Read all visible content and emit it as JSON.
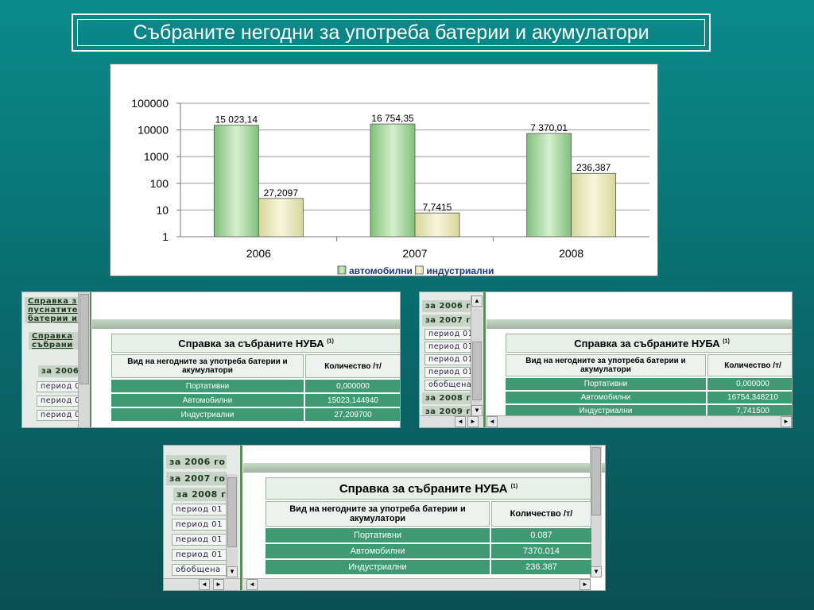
{
  "title": "Събраните негодни за употреба батерии и акумулатори",
  "chart_data": {
    "type": "bar",
    "categories": [
      "2006",
      "2007",
      "2008"
    ],
    "series": [
      {
        "name": "автомобилни",
        "values": [
          15023.14,
          16754.35,
          7370.01
        ],
        "labels": [
          "15 023,14",
          "16 754,35",
          "7 370,01"
        ],
        "color": "#a9d9a0"
      },
      {
        "name": "индустриални",
        "values": [
          27.2097,
          7.7415,
          236.387
        ],
        "labels": [
          "27,2097",
          "7,7415",
          "236,387"
        ],
        "color": "#ecebb8"
      }
    ],
    "yscale": "log",
    "ylim": [
      1,
      100000
    ],
    "yticks": [
      "1",
      "10",
      "100",
      "1000",
      "10000",
      "100000"
    ],
    "grid": true,
    "legend": "bottom"
  },
  "panels": [
    {
      "nav": [
        {
          "text": "Справка з",
          "kind": "head"
        },
        {
          "text": "пуснатите",
          "kind": "head"
        },
        {
          "text": "батерии и а",
          "kind": "head"
        },
        {
          "text": "Справка",
          "kind": "link"
        },
        {
          "text": "събрани",
          "kind": "link"
        },
        {
          "text": "за 2006",
          "kind": "year"
        },
        {
          "text": "период 0",
          "kind": "sub"
        },
        {
          "text": "период 0",
          "kind": "sub"
        },
        {
          "text": "период 0",
          "kind": "sub"
        }
      ],
      "report": {
        "title": "Справка за събраните НУБА",
        "note": "(1)",
        "col1": "Вид на негодните за употреба батерии и акумулатори",
        "col2": "Количество /т/",
        "rows": [
          {
            "type": "Портативни",
            "qty": "0,000000"
          },
          {
            "type": "Автомобилни",
            "qty": "15023,144940"
          },
          {
            "type": "Индустриални",
            "qty": "27,209700"
          }
        ]
      }
    },
    {
      "nav": [
        {
          "text": "за 2006 го",
          "kind": "year"
        },
        {
          "text": "за 2007 го",
          "kind": "year"
        },
        {
          "text": "период 01",
          "kind": "sub"
        },
        {
          "text": "период 01",
          "kind": "sub"
        },
        {
          "text": "период 01",
          "kind": "sub"
        },
        {
          "text": "период 01",
          "kind": "sub"
        },
        {
          "text": "обобщена",
          "kind": "sub"
        },
        {
          "text": "за 2008 го",
          "kind": "year"
        },
        {
          "text": "за 2009 го",
          "kind": "year"
        }
      ],
      "report": {
        "title": "Справка за събраните НУБА",
        "note": "(1)",
        "col1": "Вид на негодните за употреба батерии и акумулатори",
        "col2": "Количество /т/",
        "rows": [
          {
            "type": "Портативни",
            "qty": "0,000000"
          },
          {
            "type": "Автомобилни",
            "qty": "16754,348210"
          },
          {
            "type": "Индустриални",
            "qty": "7,741500"
          }
        ]
      }
    },
    {
      "nav": [
        {
          "text": "за 2006 го",
          "kind": "year"
        },
        {
          "text": "за 2007 го",
          "kind": "year"
        },
        {
          "text": "за 2008 г",
          "kind": "year"
        },
        {
          "text": "период 01",
          "kind": "sub"
        },
        {
          "text": "период 01",
          "kind": "sub"
        },
        {
          "text": "период 01",
          "kind": "sub"
        },
        {
          "text": "период 01",
          "kind": "sub"
        },
        {
          "text": "обобщена",
          "kind": "sub"
        }
      ],
      "report": {
        "title": "Справка за събраните НУБА",
        "note": "(1)",
        "col1": "Вид на негодните за употреба батерии и акумулатори",
        "col2": "Количество /т/",
        "rows": [
          {
            "type": "Портативни",
            "qty": "0.087"
          },
          {
            "type": "Автомобилни",
            "qty": "7370.014"
          },
          {
            "type": "Индустриални",
            "qty": "236.387"
          }
        ]
      }
    }
  ]
}
